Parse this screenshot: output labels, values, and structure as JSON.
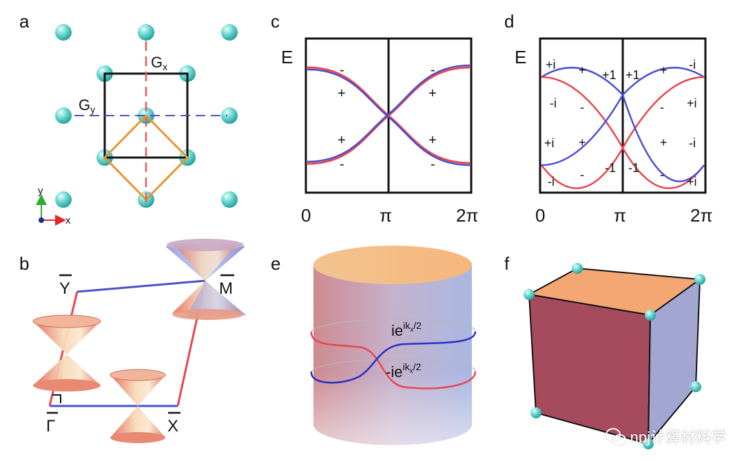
{
  "panels": {
    "a": {
      "label": "a",
      "gx_text": "G",
      "gx_sub": "x",
      "gy_text": "G",
      "gy_sub": "y",
      "axis_y": "y",
      "axis_x": "x"
    },
    "b": {
      "label": "b",
      "points": [
        "Y",
        "M",
        "Γ",
        "X"
      ]
    },
    "c": {
      "label": "c",
      "ylabel": "E",
      "xticks": [
        "0",
        "π",
        "2π"
      ],
      "signs": [
        "-",
        "+",
        "-",
        "+",
        "+",
        "-",
        "+",
        "-"
      ]
    },
    "d": {
      "label": "d",
      "ylabel": "E",
      "xticks": [
        "0",
        "π",
        "2π"
      ],
      "eigen": [
        "+i",
        "+",
        "+1",
        "+1",
        "+",
        "-i",
        "-i",
        "-",
        "-",
        "+i",
        "+i",
        "+",
        "+",
        "-i",
        "-i",
        "-",
        "-1",
        "-1",
        "-",
        "+i"
      ]
    },
    "e": {
      "label": "e",
      "upper_base": "ie",
      "upper_sup": "ik",
      "upper_sub": "x",
      "upper_tail": "/2",
      "lower_base": "-ie",
      "lower_sup": "ik",
      "lower_sub": "x",
      "lower_tail": "/2"
    },
    "f": {
      "label": "f"
    }
  },
  "colors": {
    "atom": "#5fd3cc",
    "red": "#e8464e",
    "blue": "#4a4fd0",
    "orange": "#e69a3a"
  },
  "watermark": "npj计算材料学"
}
